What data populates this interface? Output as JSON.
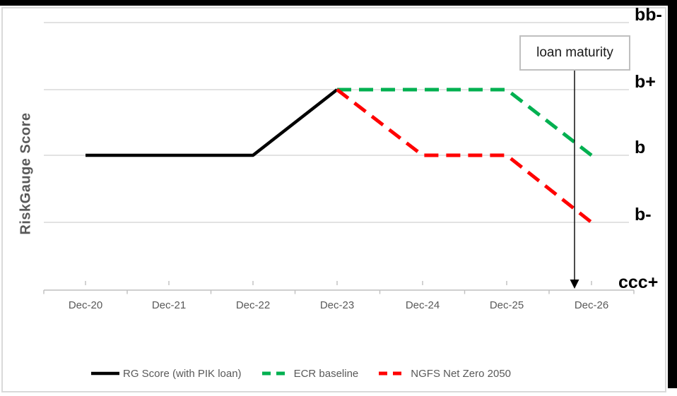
{
  "chart_data": {
    "type": "line",
    "title": "",
    "xlabel": "",
    "ylabel": "RiskGauge Score",
    "categories": [
      "Dec-20",
      "Dec-21",
      "Dec-22",
      "Dec-23",
      "Dec-24",
      "Dec-25",
      "Dec-26"
    ],
    "y_levels": [
      "ccc+",
      "b-",
      "b",
      "b+",
      "bb-"
    ],
    "y_axis_type": "categorical-rating",
    "grid": "horizontal",
    "legend_position": "bottom",
    "series": [
      {
        "name": "RG Score (with PIK loan)",
        "color": "#000000",
        "style": "solid",
        "values": [
          "b",
          "b",
          "b",
          "b+",
          null,
          null,
          null
        ]
      },
      {
        "name": "ECR baseline",
        "color": "#00B050",
        "style": "dashed",
        "values": [
          null,
          null,
          null,
          "b+",
          "b+",
          "b+",
          "b"
        ]
      },
      {
        "name": "NGFS Net Zero 2050",
        "color": "#FF0000",
        "style": "dashed",
        "values": [
          null,
          null,
          null,
          "b+",
          "b",
          "b",
          "b-"
        ]
      }
    ],
    "annotation": {
      "label": "loan maturity",
      "x_index": 5.8,
      "points_to": "x-axis just before Dec-26"
    },
    "colors": {
      "gridline": "#D9D9D9",
      "axis": "#BFBFBF",
      "text_gray": "#595959",
      "level_label": "#000000"
    }
  }
}
